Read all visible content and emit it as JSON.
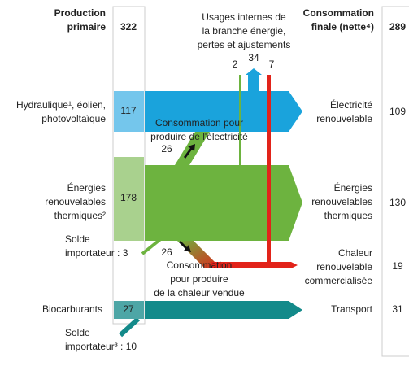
{
  "header": {
    "left_title": [
      "Production",
      "primaire"
    ],
    "left_total": "322",
    "center_title": [
      "Usages internes de",
      "la branche énergie,",
      "pertes et ajustements"
    ],
    "right_title": [
      "Consommation",
      "finale (nette⁴)"
    ],
    "right_total": "289"
  },
  "internal_uses": {
    "electricity_green": "2",
    "electricity_blue": "34",
    "heat_red": "7"
  },
  "sources": [
    {
      "label": [
        "Hydraulique¹, éolien,",
        "photovoltaïque"
      ],
      "value": "117"
    },
    {
      "label": [
        "Énergies",
        "renouvelables",
        "thermiques²"
      ],
      "value": "178"
    },
    {
      "label": [
        "Biocarburants"
      ],
      "value": "27"
    }
  ],
  "imports": [
    {
      "label": [
        "Solde",
        "importateur : 3"
      ]
    },
    {
      "label": [
        "Solde",
        "importateur³ : 10"
      ]
    }
  ],
  "transfers": [
    {
      "label": [
        "Consommation pour",
        "produire de l'électricité"
      ],
      "value": "26"
    },
    {
      "label": [
        "Consommation",
        "pour produire",
        "de la chaleur vendue"
      ],
      "value": "26"
    }
  ],
  "uses": [
    {
      "label": [
        "Électricité",
        "renouvelable"
      ],
      "value": "109"
    },
    {
      "label": [
        "Énergies",
        "renouvelables",
        "thermiques"
      ],
      "value": "130"
    },
    {
      "label": [
        "Chaleur",
        "renouvelable",
        "commercialisée"
      ],
      "value": "19"
    },
    {
      "label": [
        "Transport"
      ],
      "value": "31"
    }
  ]
}
